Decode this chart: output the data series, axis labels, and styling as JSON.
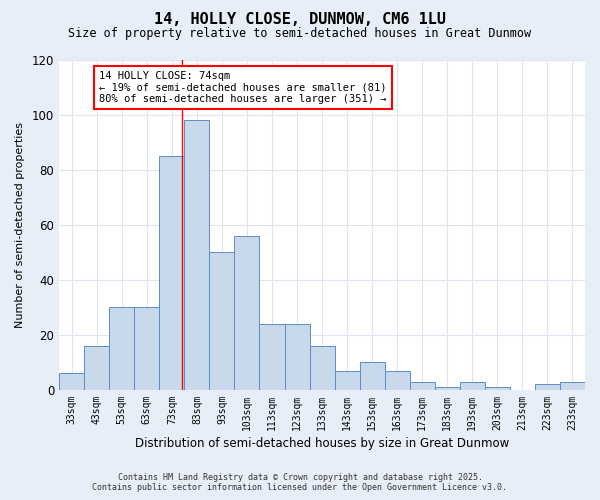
{
  "title": "14, HOLLY CLOSE, DUNMOW, CM6 1LU",
  "subtitle": "Size of property relative to semi-detached houses in Great Dunmow",
  "xlabel": "Distribution of semi-detached houses by size in Great Dunmow",
  "ylabel": "Number of semi-detached properties",
  "categories": [
    "33sqm",
    "43sqm",
    "53sqm",
    "63sqm",
    "73sqm",
    "83sqm",
    "93sqm",
    "103sqm",
    "113sqm",
    "123sqm",
    "133sqm",
    "143sqm",
    "153sqm",
    "163sqm",
    "173sqm",
    "183sqm",
    "193sqm",
    "203sqm",
    "213sqm",
    "223sqm",
    "233sqm"
  ],
  "values": [
    6,
    16,
    30,
    30,
    85,
    98,
    50,
    56,
    24,
    24,
    16,
    7,
    10,
    7,
    3,
    1,
    3,
    1,
    0,
    2,
    3
  ],
  "bar_color": "#c9d9ec",
  "bar_edge_color": "#5b8cc8",
  "ylim": [
    0,
    120
  ],
  "yticks": [
    0,
    20,
    40,
    60,
    80,
    100,
    120
  ],
  "property_label": "14 HOLLY CLOSE: 74sqm",
  "pct_smaller": 19,
  "pct_larger": 80,
  "n_smaller": 81,
  "n_larger": 351,
  "red_line_x": 4.4,
  "bg_color": "#e8eef7",
  "plot_bg_color": "#ffffff",
  "grid_color": "#dce4f0",
  "footer_line1": "Contains HM Land Registry data © Crown copyright and database right 2025.",
  "footer_line2": "Contains public sector information licensed under the Open Government Licence v3.0."
}
